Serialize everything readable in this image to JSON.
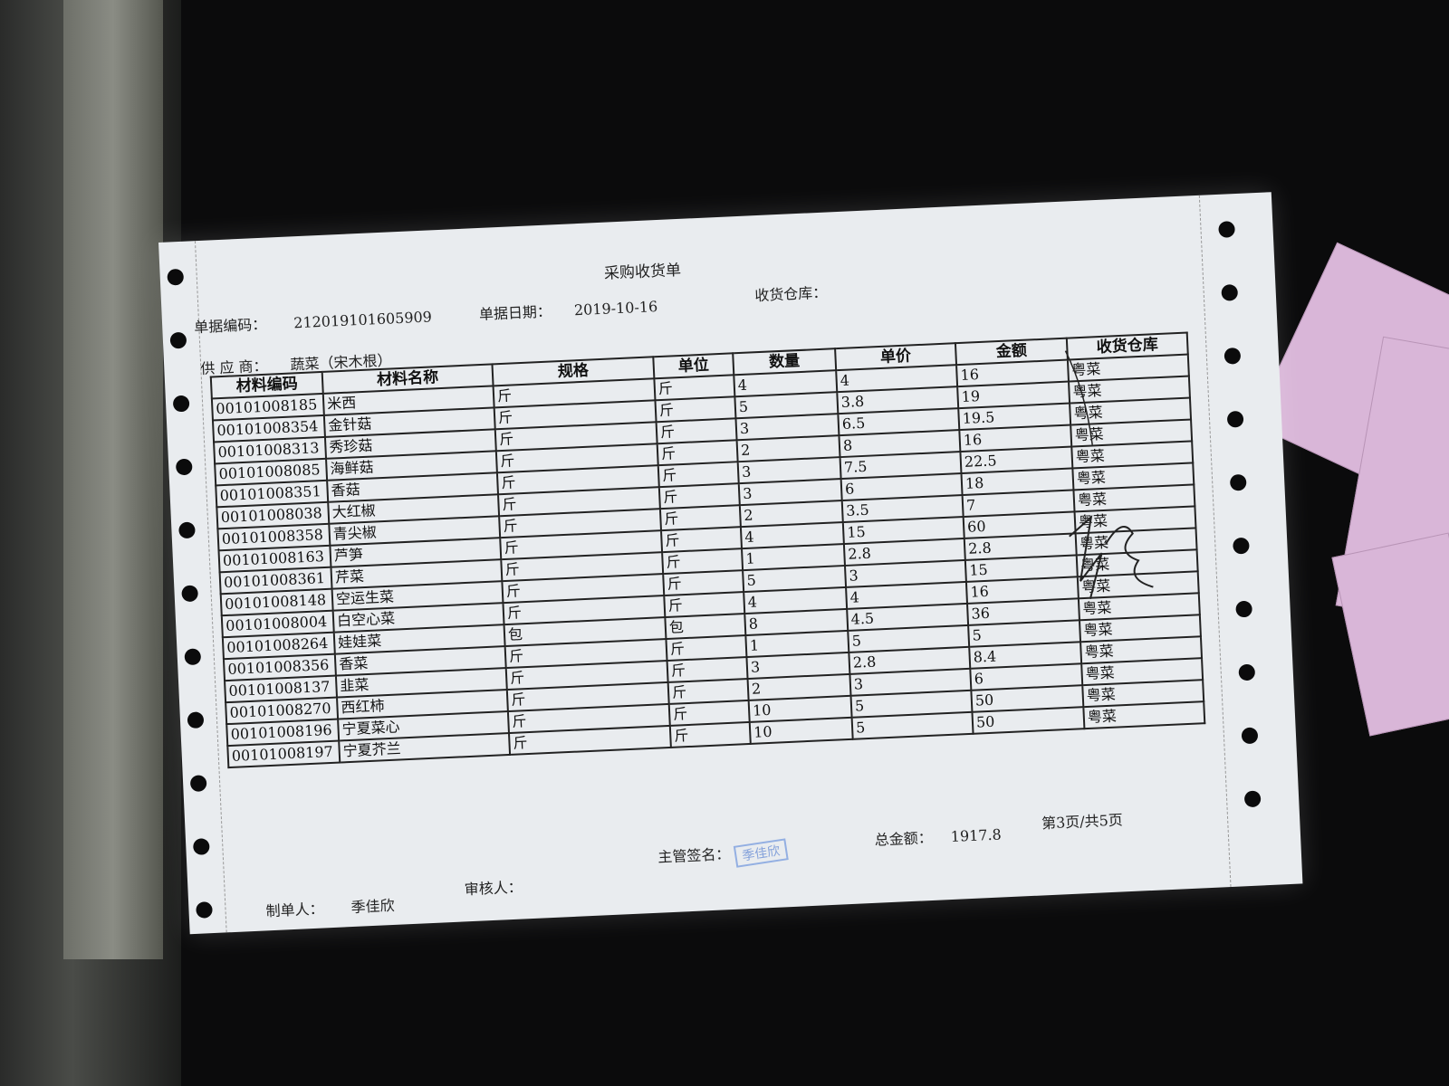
{
  "document": {
    "title": "采购收货单",
    "doc_no_label": "单据编码：",
    "doc_no": "212019101605909",
    "date_label": "单据日期：",
    "date": "2019-10-16",
    "warehouse_label": "收货仓库：",
    "supplier_label": "供 应 商：",
    "supplier": "蔬菜（宋木根）",
    "columns": [
      "材料编码",
      "材料名称",
      "规格",
      "单位",
      "数量",
      "单价",
      "金额",
      "收货仓库"
    ],
    "rows": [
      [
        "00101008185",
        "米西",
        "斤",
        "斤",
        "4",
        "4",
        "16",
        "粤菜"
      ],
      [
        "00101008354",
        "金针菇",
        "斤",
        "斤",
        "5",
        "3.8",
        "19",
        "粤菜"
      ],
      [
        "00101008313",
        "秀珍菇",
        "斤",
        "斤",
        "3",
        "6.5",
        "19.5",
        "粤菜"
      ],
      [
        "00101008085",
        "海鲜菇",
        "斤",
        "斤",
        "2",
        "8",
        "16",
        "粤菜"
      ],
      [
        "00101008351",
        "香菇",
        "斤",
        "斤",
        "3",
        "7.5",
        "22.5",
        "粤菜"
      ],
      [
        "00101008038",
        "大红椒",
        "斤",
        "斤",
        "3",
        "6",
        "18",
        "粤菜"
      ],
      [
        "00101008358",
        "青尖椒",
        "斤",
        "斤",
        "2",
        "3.5",
        "7",
        "粤菜"
      ],
      [
        "00101008163",
        "芦笋",
        "斤",
        "斤",
        "4",
        "15",
        "60",
        "粤菜"
      ],
      [
        "00101008361",
        "芹菜",
        "斤",
        "斤",
        "1",
        "2.8",
        "2.8",
        "粤菜"
      ],
      [
        "00101008148",
        "空运生菜",
        "斤",
        "斤",
        "5",
        "3",
        "15",
        "粤菜"
      ],
      [
        "00101008004",
        "白空心菜",
        "斤",
        "斤",
        "4",
        "4",
        "16",
        "粤菜"
      ],
      [
        "00101008264",
        "娃娃菜",
        "包",
        "包",
        "8",
        "4.5",
        "36",
        "粤菜"
      ],
      [
        "00101008356",
        "香菜",
        "斤",
        "斤",
        "1",
        "5",
        "5",
        "粤菜"
      ],
      [
        "00101008137",
        "韭菜",
        "斤",
        "斤",
        "3",
        "2.8",
        "8.4",
        "粤菜"
      ],
      [
        "00101008270",
        "西红柿",
        "斤",
        "斤",
        "2",
        "3",
        "6",
        "粤菜"
      ],
      [
        "00101008196",
        "宁夏菜心",
        "斤",
        "斤",
        "10",
        "5",
        "50",
        "粤菜"
      ],
      [
        "00101008197",
        "宁夏芥兰",
        "斤",
        "斤",
        "10",
        "5",
        "50",
        "粤菜"
      ]
    ],
    "supervisor_label": "主管签名：",
    "supervisor_stamp": "季佳欣",
    "total_label": "总金额：",
    "total": "1917.8",
    "page_info": "第3页/共5页",
    "maker_label": "制单人：",
    "maker": "季佳欣",
    "reviewer_label": "审核人："
  }
}
